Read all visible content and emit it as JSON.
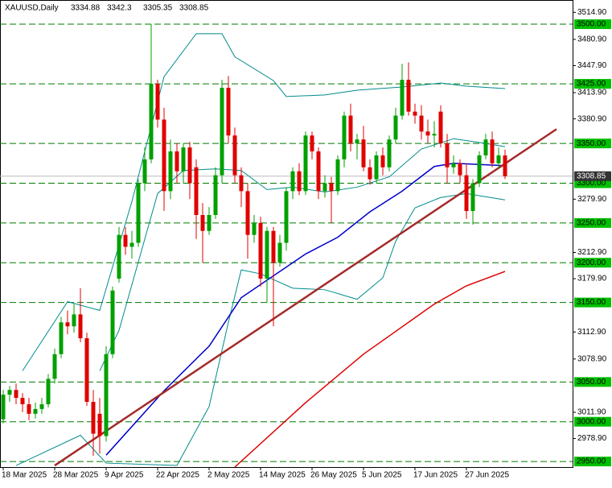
{
  "chart_data": {
    "type": "candlestick",
    "title": "XAUUSD,Daily",
    "categories": [
      "18 Mar 2025",
      null,
      null,
      null,
      null,
      null,
      null,
      null,
      "28 Mar 2025",
      null,
      null,
      null,
      null,
      null,
      null,
      null,
      "9 Apr 2025",
      null,
      null,
      null,
      null,
      null,
      null,
      null,
      "22 Apr 2025",
      null,
      null,
      null,
      null,
      null,
      null,
      null,
      "2 May 2025",
      null,
      null,
      null,
      null,
      null,
      null,
      null,
      "14 May 2025",
      null,
      null,
      null,
      null,
      null,
      null,
      null,
      "26 May 2025",
      null,
      null,
      null,
      null,
      null,
      null,
      null,
      "5 Jun 2025",
      null,
      null,
      null,
      null,
      null,
      null,
      null,
      "17 Jun 2025",
      null,
      null,
      null,
      null,
      null,
      null,
      null,
      "27 Jun 2025",
      null,
      null,
      null,
      null,
      null,
      null
    ],
    "open": [
      3003,
      3034,
      3040,
      3030,
      3022,
      3010,
      3016,
      3022,
      3054,
      3085,
      3125,
      3120,
      3135,
      3105,
      3025,
      3010,
      2982,
      3085,
      3180,
      3235,
      3220,
      3225,
      3300,
      3330,
      3425,
      3380,
      3290,
      3340,
      3315,
      3345,
      3320,
      3260,
      3240,
      3260,
      3310,
      3420,
      3360,
      3310,
      3290,
      3235,
      3250,
      3180,
      3240,
      3200,
      3225,
      3290,
      3315,
      3290,
      3360,
      3340,
      3290,
      3300,
      3290,
      3330,
      3385,
      3350,
      3355,
      3320,
      3305,
      3335,
      3320,
      3355,
      3385,
      3430,
      3390,
      3385,
      3365,
      3360,
      3390,
      3350,
      3320,
      3325,
      3310,
      3265,
      3300,
      3335,
      3355,
      3325,
      3334.88
    ],
    "high": [
      3040,
      3045,
      3048,
      3036,
      3030,
      3024,
      3030,
      3060,
      3092,
      3132,
      3140,
      3148,
      3168,
      3112,
      3040,
      3030,
      3095,
      3170,
      3245,
      3245,
      3240,
      3305,
      3345,
      3500,
      3430,
      3395,
      3355,
      3350,
      3350,
      3352,
      3330,
      3275,
      3270,
      3320,
      3430,
      3435,
      3370,
      3320,
      3300,
      3260,
      3258,
      3245,
      3245,
      3235,
      3295,
      3320,
      3325,
      3365,
      3365,
      3345,
      3310,
      3308,
      3335,
      3390,
      3400,
      3362,
      3372,
      3330,
      3340,
      3345,
      3360,
      3395,
      3450,
      3452,
      3400,
      3398,
      3380,
      3378,
      3398,
      3362,
      3335,
      3330,
      3325,
      3305,
      3340,
      3362,
      3365,
      3345,
      3342.3
    ],
    "low": [
      2998,
      3025,
      3022,
      3012,
      3002,
      3004,
      3010,
      3018,
      3048,
      3080,
      3110,
      3112,
      3100,
      3020,
      2957,
      2960,
      2975,
      3080,
      3175,
      3210,
      3205,
      3220,
      3290,
      3325,
      3370,
      3265,
      3280,
      3300,
      3300,
      3280,
      3230,
      3200,
      3235,
      3255,
      3300,
      3350,
      3300,
      3270,
      3205,
      3225,
      3170,
      3150,
      3120,
      3195,
      3215,
      3280,
      3285,
      3285,
      3330,
      3280,
      3282,
      3250,
      3285,
      3320,
      3340,
      3330,
      3315,
      3298,
      3300,
      3310,
      3315,
      3350,
      3380,
      3385,
      3375,
      3355,
      3350,
      3345,
      3345,
      3300,
      3312,
      3300,
      3255,
      3248,
      3295,
      3330,
      3320,
      3318,
      3305.35
    ],
    "close": [
      3034,
      3040,
      3030,
      3022,
      3010,
      3016,
      3022,
      3054,
      3085,
      3125,
      3120,
      3135,
      3105,
      3025,
      2985,
      2982,
      3085,
      3165,
      3235,
      3220,
      3225,
      3300,
      3330,
      3425,
      3380,
      3290,
      3340,
      3315,
      3345,
      3300,
      3260,
      3240,
      3260,
      3310,
      3420,
      3360,
      3310,
      3290,
      3235,
      3250,
      3180,
      3240,
      3200,
      3225,
      3290,
      3315,
      3290,
      3360,
      3340,
      3290,
      3300,
      3290,
      3330,
      3385,
      3350,
      3355,
      3320,
      3305,
      3335,
      3320,
      3355,
      3385,
      3430,
      3390,
      3385,
      3365,
      3360,
      3362,
      3350,
      3320,
      3325,
      3310,
      3265,
      3300,
      3335,
      3355,
      3325,
      3335,
      3308.85
    ],
    "up_color": "#00a000",
    "down_color": "#e00000",
    "lines": [
      {
        "color": "#008b8b",
        "x": [
          3,
          10,
          15,
          20,
          25,
          30,
          34,
          36,
          42,
          44,
          50,
          55,
          62,
          68,
          72,
          78
        ],
        "values": [
          3064,
          3151,
          3140,
          3277,
          3434,
          3488,
          3488,
          3459,
          3429,
          3409,
          3411,
          3417,
          3421,
          3426,
          3422,
          3419
        ]
      },
      {
        "color": "#008b8b",
        "x": [
          15,
          18,
          21,
          24,
          28,
          33,
          37,
          41,
          45,
          50,
          55,
          60,
          65,
          70,
          75,
          78
        ],
        "values": [
          3064,
          3115,
          3201,
          3287,
          3316,
          3318,
          3316,
          3292,
          3295,
          3289,
          3295,
          3308,
          3343,
          3356,
          3350,
          3346
        ]
      },
      {
        "color": "#008b8b",
        "x": [
          2,
          12,
          16,
          27,
          32,
          35,
          37,
          40,
          45,
          50,
          55,
          59,
          61,
          64,
          68,
          72,
          78
        ],
        "values": [
          2945,
          2983,
          2948,
          2945,
          3019,
          3125,
          3191,
          3186,
          3168,
          3166,
          3154,
          3181,
          3227,
          3269,
          3282,
          3287,
          3279
        ]
      },
      {
        "color": "#0000cc",
        "x": [
          16,
          25,
          32,
          37,
          47,
          52,
          57,
          62,
          67,
          70,
          78
        ],
        "values": [
          2958,
          3039,
          3095,
          3156,
          3211,
          3232,
          3264,
          3290,
          3321,
          3325,
          3322
        ]
      },
      {
        "color": "#dd0000",
        "x": [
          36,
          47,
          56,
          67,
          72,
          78
        ],
        "values": [
          2943,
          3024,
          3085,
          3148,
          3171,
          3189
        ]
      },
      {
        "color": "#a52a2a",
        "x": [
          8,
          86
        ],
        "values": [
          2945,
          3368
        ]
      }
    ],
    "levels": [
      {
        "value": 3500,
        "label": "3500.00"
      },
      {
        "value": 3425,
        "label": "3425.00"
      },
      {
        "value": 3350,
        "label": "3350.00"
      },
      {
        "value": 3300,
        "label": "3300.00"
      },
      {
        "value": 3250,
        "label": "3250.00"
      },
      {
        "value": 3200,
        "label": "3200.00"
      },
      {
        "value": 3150,
        "label": "3150.00"
      },
      {
        "value": 3050,
        "label": "3050.00"
      },
      {
        "value": 3000,
        "label": "3000.00"
      },
      {
        "value": 2950,
        "label": "2950.00"
      }
    ],
    "level_color": "#007a00",
    "xlim": [
      -0.5,
      88.5
    ],
    "ylim": [
      2943,
      3530.4
    ],
    "yticks": [
      {
        "value": 3514.9,
        "label": "3514.90"
      },
      {
        "value": 3480.9,
        "label": "3480.90"
      },
      {
        "value": 3447.9,
        "label": "3447.90"
      },
      {
        "value": 3413.9,
        "label": "3413.90"
      },
      {
        "value": 3380.9,
        "label": "3380.90"
      },
      {
        "value": 3279.9,
        "label": "3279.90"
      },
      {
        "value": 3212.9,
        "label": "3212.90"
      },
      {
        "value": 3179.9,
        "label": "3179.90"
      },
      {
        "value": 3112.9,
        "label": "3112.90"
      },
      {
        "value": 3078.9,
        "label": "3078.90"
      },
      {
        "value": 3011.9,
        "label": "3011.90"
      },
      {
        "value": 2978.9,
        "label": "2978.90"
      }
    ]
  }
}
